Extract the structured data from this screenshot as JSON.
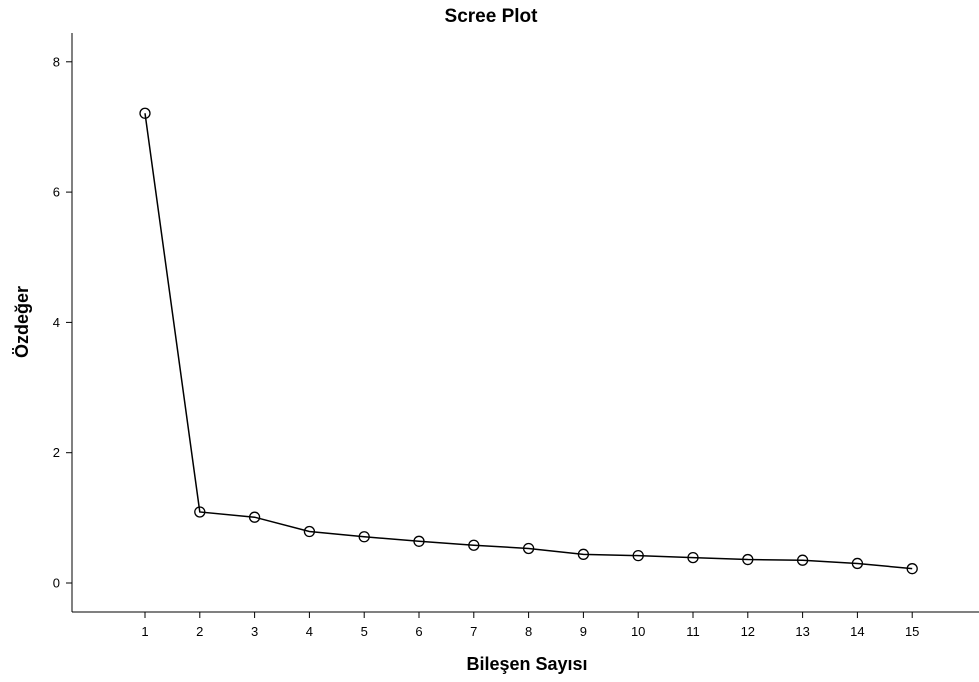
{
  "chart_data": {
    "type": "line",
    "title": "Scree Plot",
    "xlabel": "Bileşen Sayısı",
    "ylabel": "Özdeğer",
    "x": [
      1,
      2,
      3,
      4,
      5,
      6,
      7,
      8,
      9,
      10,
      11,
      12,
      13,
      14,
      15
    ],
    "series": [
      {
        "values": [
          7.21,
          1.09,
          1.01,
          0.79,
          0.71,
          0.64,
          0.58,
          0.53,
          0.44,
          0.42,
          0.39,
          0.36,
          0.35,
          0.3,
          0.22
        ]
      }
    ],
    "x_ticks": [
      "1",
      "2",
      "3",
      "4",
      "5",
      "6",
      "7",
      "8",
      "9",
      "10",
      "11",
      "12",
      "13",
      "14",
      "15"
    ],
    "y_ticks": [
      "0",
      "2",
      "4",
      "6",
      "8"
    ],
    "ylim": [
      0,
      8
    ],
    "grid": false,
    "marker": "open-circle",
    "line_color": "#000000"
  }
}
